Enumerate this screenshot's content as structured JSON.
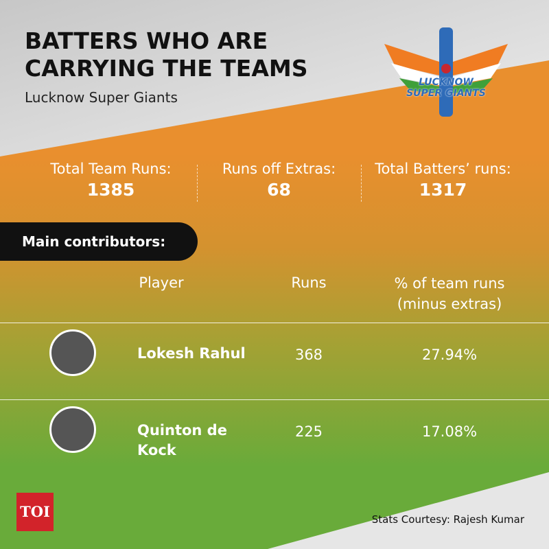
{
  "header": {
    "title": "BATTERS WHO ARE CARRYING THE TEAMS",
    "subtitle": "Lucknow Super Giants"
  },
  "logo": {
    "lines": [
      "LUCKNOW",
      "SUPER GIANTS"
    ]
  },
  "stats": [
    {
      "label": "Total Team Runs:",
      "value": "1385"
    },
    {
      "label": "Runs off Extras:",
      "value": "68"
    },
    {
      "label": "Total Batters’ runs:",
      "value": "1317"
    }
  ],
  "section": "Main contributors:",
  "table": {
    "headers": [
      "Player",
      "Runs",
      "% of team runs (minus extras)"
    ],
    "rows": [
      [
        "Lokesh Rahul",
        "368",
        "27.94%"
      ],
      [
        "Quinton de Kock",
        "225",
        "17.08%"
      ]
    ]
  },
  "footer": {
    "brand": "TOI",
    "credit": "Stats Courtesy: Rajesh Kumar"
  }
}
